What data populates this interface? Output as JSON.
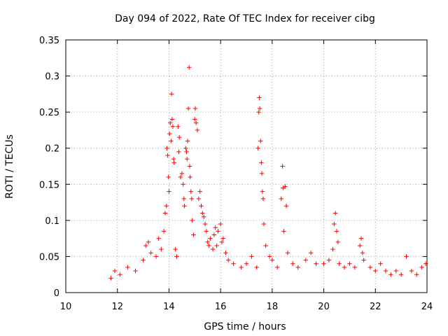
{
  "chart_data": {
    "type": "scatter",
    "title": "Day 094 of 2022, Rate Of TEC Index for receiver cibg",
    "xlabel": "GPS time / hours",
    "ylabel": "ROTI / TECUs",
    "xlim": [
      10,
      24
    ],
    "ylim": [
      0,
      0.35
    ],
    "x_ticks": [
      10,
      12,
      14,
      16,
      18,
      20,
      22,
      24
    ],
    "x_tick_labels": [
      "10",
      "12",
      "14",
      "16",
      "18",
      "20",
      "22",
      "24"
    ],
    "y_ticks": [
      0,
      0.05,
      0.1,
      0.15,
      0.2,
      0.25,
      0.3,
      0.35
    ],
    "y_tick_labels": [
      "0",
      "0.05",
      "0.1",
      "0.15",
      "0.2",
      "0.25",
      "0.3",
      "0.35"
    ],
    "grid": true,
    "marker": "+",
    "color": "#ff0000",
    "series": [
      {
        "name": "ROTI",
        "points": [
          [
            11.75,
            0.02
          ],
          [
            11.9,
            0.03
          ],
          [
            12.1,
            0.025
          ],
          [
            12.4,
            0.035
          ],
          [
            12.7,
            0.03
          ],
          [
            13.0,
            0.045
          ],
          [
            13.1,
            0.065
          ],
          [
            13.2,
            0.07
          ],
          [
            13.3,
            0.055
          ],
          [
            13.5,
            0.05
          ],
          [
            13.6,
            0.075
          ],
          [
            13.7,
            0.06
          ],
          [
            13.8,
            0.085
          ],
          [
            13.85,
            0.11
          ],
          [
            13.9,
            0.12
          ],
          [
            13.92,
            0.2
          ],
          [
            13.95,
            0.19
          ],
          [
            13.98,
            0.16
          ],
          [
            14.0,
            0.14
          ],
          [
            14.02,
            0.22
          ],
          [
            14.05,
            0.235
          ],
          [
            14.08,
            0.21
          ],
          [
            14.1,
            0.275
          ],
          [
            14.12,
            0.24
          ],
          [
            14.15,
            0.23
          ],
          [
            14.18,
            0.185
          ],
          [
            14.2,
            0.18
          ],
          [
            14.25,
            0.06
          ],
          [
            14.3,
            0.05
          ],
          [
            14.35,
            0.23
          ],
          [
            14.38,
            0.195
          ],
          [
            14.4,
            0.215
          ],
          [
            14.45,
            0.16
          ],
          [
            14.5,
            0.165
          ],
          [
            14.55,
            0.15
          ],
          [
            14.58,
            0.13
          ],
          [
            14.6,
            0.12
          ],
          [
            14.65,
            0.2
          ],
          [
            14.68,
            0.195
          ],
          [
            14.7,
            0.185
          ],
          [
            14.72,
            0.21
          ],
          [
            14.75,
            0.255
          ],
          [
            14.78,
            0.312
          ],
          [
            14.8,
            0.175
          ],
          [
            14.82,
            0.16
          ],
          [
            14.85,
            0.14
          ],
          [
            14.88,
            0.13
          ],
          [
            14.9,
            0.1
          ],
          [
            14.95,
            0.08
          ],
          [
            15.0,
            0.24
          ],
          [
            15.02,
            0.255
          ],
          [
            15.05,
            0.235
          ],
          [
            15.1,
            0.225
          ],
          [
            15.15,
            0.13
          ],
          [
            15.2,
            0.14
          ],
          [
            15.25,
            0.12
          ],
          [
            15.3,
            0.11
          ],
          [
            15.35,
            0.105
          ],
          [
            15.4,
            0.095
          ],
          [
            15.45,
            0.085
          ],
          [
            15.5,
            0.07
          ],
          [
            15.55,
            0.065
          ],
          [
            15.6,
            0.075
          ],
          [
            15.7,
            0.06
          ],
          [
            15.75,
            0.08
          ],
          [
            15.8,
            0.09
          ],
          [
            15.85,
            0.065
          ],
          [
            15.9,
            0.085
          ],
          [
            16.0,
            0.095
          ],
          [
            16.05,
            0.07
          ],
          [
            16.1,
            0.075
          ],
          [
            16.2,
            0.055
          ],
          [
            16.3,
            0.045
          ],
          [
            16.5,
            0.04
          ],
          [
            16.8,
            0.035
          ],
          [
            17.0,
            0.04
          ],
          [
            17.2,
            0.05
          ],
          [
            17.4,
            0.035
          ],
          [
            17.45,
            0.2
          ],
          [
            17.48,
            0.25
          ],
          [
            17.5,
            0.27
          ],
          [
            17.52,
            0.255
          ],
          [
            17.55,
            0.21
          ],
          [
            17.58,
            0.18
          ],
          [
            17.6,
            0.165
          ],
          [
            17.62,
            0.14
          ],
          [
            17.65,
            0.13
          ],
          [
            17.68,
            0.095
          ],
          [
            17.75,
            0.065
          ],
          [
            17.9,
            0.05
          ],
          [
            18.0,
            0.045
          ],
          [
            18.2,
            0.035
          ],
          [
            18.35,
            0.13
          ],
          [
            18.4,
            0.175
          ],
          [
            18.42,
            0.145
          ],
          [
            18.45,
            0.085
          ],
          [
            18.5,
            0.147
          ],
          [
            18.55,
            0.12
          ],
          [
            18.6,
            0.055
          ],
          [
            18.8,
            0.04
          ],
          [
            19.0,
            0.035
          ],
          [
            19.3,
            0.045
          ],
          [
            19.5,
            0.055
          ],
          [
            19.7,
            0.04
          ],
          [
            20.0,
            0.04
          ],
          [
            20.2,
            0.045
          ],
          [
            20.35,
            0.06
          ],
          [
            20.4,
            0.095
          ],
          [
            20.45,
            0.11
          ],
          [
            20.5,
            0.085
          ],
          [
            20.55,
            0.07
          ],
          [
            20.6,
            0.04
          ],
          [
            20.8,
            0.035
          ],
          [
            21.0,
            0.04
          ],
          [
            21.2,
            0.035
          ],
          [
            21.4,
            0.065
          ],
          [
            21.45,
            0.075
          ],
          [
            21.5,
            0.055
          ],
          [
            21.55,
            0.045
          ],
          [
            21.8,
            0.035
          ],
          [
            22.0,
            0.03
          ],
          [
            22.2,
            0.04
          ],
          [
            22.4,
            0.03
          ],
          [
            22.6,
            0.025
          ],
          [
            22.8,
            0.03
          ],
          [
            23.0,
            0.025
          ],
          [
            23.2,
            0.05
          ],
          [
            23.4,
            0.03
          ],
          [
            23.6,
            0.025
          ],
          [
            23.8,
            0.035
          ],
          [
            23.95,
            0.04
          ]
        ]
      }
    ]
  }
}
